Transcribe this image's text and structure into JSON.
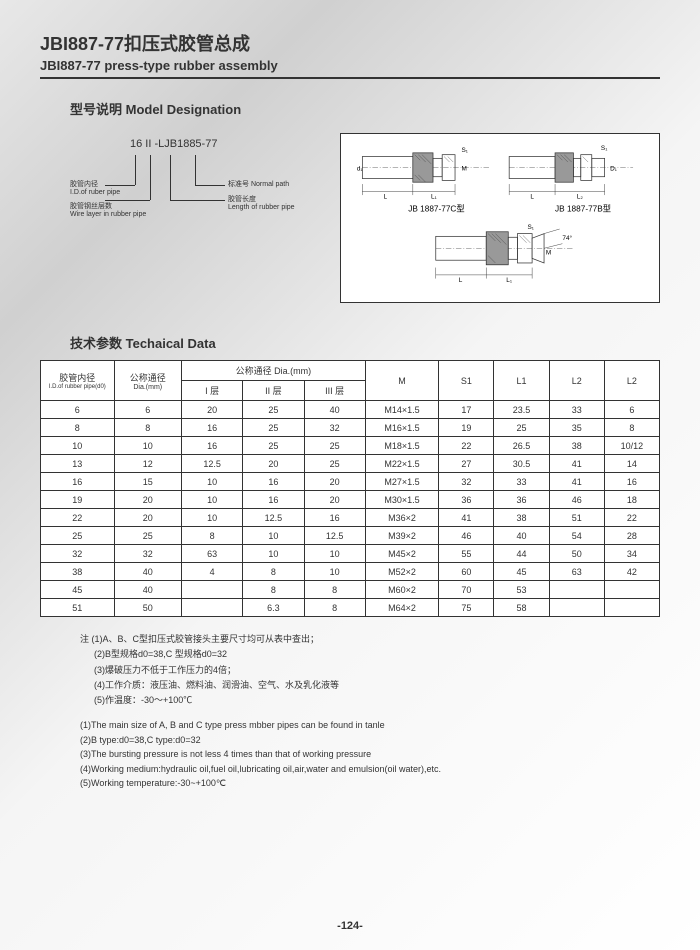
{
  "header": {
    "title_cn": "JBI887-77扣压式胶管总成",
    "title_en": "JBI887-77 press-type rubber assembly"
  },
  "model": {
    "section_title": "型号说明  Model Designation",
    "code": "16 II -LJB1885-77",
    "labels": {
      "id_cn": "胶管内径",
      "id_en": "I.D.of ruber pipe",
      "wire_cn": "胶管钢丝层数",
      "wire_en": "Wire layer in rubber pipe",
      "norm_cn": "标准号",
      "norm_en": "Normal path",
      "len_cn": "胶管长度",
      "len_en": "Length of rubber pipe"
    }
  },
  "diagram": {
    "label_c": "JB 1887-77C型",
    "label_b": "JB 1887-77B型",
    "dims": {
      "L": "L",
      "L1": "L₁",
      "L2": "L₂",
      "M": "M",
      "S1": "S₁",
      "d1": "d₁",
      "D": "D₁"
    },
    "cone_angle": "74°"
  },
  "tech": {
    "section_title": "技术参数    Techaical Data",
    "head": {
      "col1a": "胶管内径",
      "col1b": "I.D.of rubber pipe(d0)",
      "col2a": "公称通径",
      "col2b": "Dia.(mm)",
      "col3": "公称通径 Dia.(mm)",
      "sub1": "I 层",
      "sub2": "II 层",
      "sub3": "III 层",
      "M": "M",
      "S1": "S1",
      "L1": "L1",
      "L2": "L2",
      "L2b": "L2"
    },
    "rows": [
      [
        "6",
        "6",
        "20",
        "25",
        "40",
        "M14×1.5",
        "17",
        "23.5",
        "33",
        "6"
      ],
      [
        "8",
        "8",
        "16",
        "25",
        "32",
        "M16×1.5",
        "19",
        "25",
        "35",
        "8"
      ],
      [
        "10",
        "10",
        "16",
        "25",
        "25",
        "M18×1.5",
        "22",
        "26.5",
        "38",
        "10/12"
      ],
      [
        "13",
        "12",
        "12.5",
        "20",
        "25",
        "M22×1.5",
        "27",
        "30.5",
        "41",
        "14"
      ],
      [
        "16",
        "15",
        "10",
        "16",
        "20",
        "M27×1.5",
        "32",
        "33",
        "41",
        "16"
      ],
      [
        "19",
        "20",
        "10",
        "16",
        "20",
        "M30×1.5",
        "36",
        "36",
        "46",
        "18"
      ],
      [
        "22",
        "20",
        "10",
        "12.5",
        "16",
        "M36×2",
        "41",
        "38",
        "51",
        "22"
      ],
      [
        "25",
        "25",
        "8",
        "10",
        "12.5",
        "M39×2",
        "46",
        "40",
        "54",
        "28"
      ],
      [
        "32",
        "32",
        "63",
        "10",
        "10",
        "M45×2",
        "55",
        "44",
        "50",
        "34"
      ],
      [
        "38",
        "40",
        "4",
        "8",
        "10",
        "M52×2",
        "60",
        "45",
        "63",
        "42"
      ],
      [
        "45",
        "40",
        "",
        "8",
        "8",
        "M60×2",
        "70",
        "53",
        "",
        ""
      ],
      [
        "51",
        "50",
        "",
        "6.3",
        "8",
        "M64×2",
        "75",
        "58",
        "",
        ""
      ]
    ]
  },
  "notes_cn": {
    "intro": "注 (1)A、B、C型扣压式胶管接头主要尺寸均可从表中查出；",
    "n2": "(2)B型规格d0=38,C 型规格d0=32",
    "n3": "(3)爆破压力不低于工作压力的4倍；",
    "n4": "(4)工作介质：液压油、燃料油、润滑油、空气、水及乳化液等",
    "n5": "(5)作温度：-30～+100℃"
  },
  "notes_en": {
    "n1": "(1)The main size of A, B and C type press mbber pipes can be found in tanle",
    "n2": "(2)B type:d0=38,C type:d0=32",
    "n3": "(3)The bursting pressure is not less 4 times than that of working pressure",
    "n4": "(4)Working medium:hydraulic oil,fuel oil,lubricating oil,air,water and emulsion(oil water),etc.",
    "n5": "(5)Working temperature:-30~+100℃"
  },
  "page": "-124-",
  "colors": {
    "border": "#333333",
    "bg_fitting": "#888888"
  }
}
